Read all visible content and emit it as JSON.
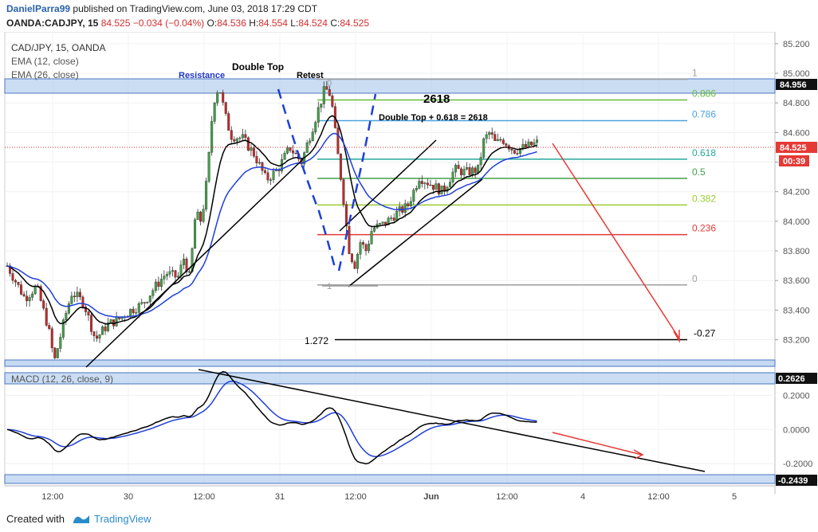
{
  "header": {
    "author": "DanielParra99",
    "published_text": "published on TradingView.com, June 03, 2018 17:29 CDT",
    "symbol": "OANDA:CADJPY, 15",
    "last": "84.525",
    "change": "−0.034 (−0.04%)",
    "o_label": "O:",
    "o_value": "84.536",
    "h_label": "H:",
    "h_value": "84.554",
    "l_label": "L:",
    "l_value": "84.524",
    "c_label": "C:",
    "c_value": "84.525"
  },
  "legend": {
    "title": "CAD/JPY, 15, OANDA",
    "ema12": "EMA (12, close)",
    "ema26": "EMA (26, close)",
    "macd": "MACD (12, 26, close, 9)"
  },
  "annotations": {
    "resistance": "Resistance",
    "double_top": "Double Top",
    "retest": "Retest",
    "target_big": "2618",
    "target_formula": "Double Top + 0.618 = 2618",
    "fib_zero_marker": "0",
    "fib_one_marker": "1",
    "fib_ext": "1.272"
  },
  "fib_levels": [
    {
      "label": "1",
      "price": 84.96,
      "color": "#9e9e9e"
    },
    {
      "label": "0.886",
      "price": 84.82,
      "color": "#66bb3b"
    },
    {
      "label": "0.786",
      "price": 84.68,
      "color": "#4aa3df"
    },
    {
      "label": "0.618",
      "price": 84.42,
      "color": "#26a69a"
    },
    {
      "label": "0.5",
      "price": 84.29,
      "color": "#43a047"
    },
    {
      "label": "0.382",
      "price": 84.11,
      "color": "#9ccc33"
    },
    {
      "label": "0.236",
      "price": 83.91,
      "color": "#e53935"
    },
    {
      "label": "0",
      "price": 83.57,
      "color": "#9e9e9e"
    },
    {
      "label": "-0.27",
      "price": 83.2,
      "color": "#000000"
    }
  ],
  "price_axis": {
    "ticks": [
      "85.200",
      "85.000",
      "84.800",
      "84.600",
      "84.400",
      "84.200",
      "84.000",
      "83.800",
      "83.600",
      "83.400",
      "83.200"
    ],
    "resistance_label": "84.956",
    "last_label": "84.525",
    "countdown": "00:39"
  },
  "macd_axis": {
    "ticks": [
      "0.2000",
      "0.0000",
      "-0.2000"
    ],
    "upper_label": "0.2626",
    "lower_label": "-0.2439"
  },
  "time_axis": [
    "12:00",
    "30",
    "12:00",
    "31",
    "12:00",
    "Jun",
    "12:00",
    "4",
    "12:00",
    "5"
  ],
  "footer": {
    "created_with": "Created with",
    "brand": "TradingView"
  },
  "colors": {
    "bull": "#43a047",
    "bear": "#c62828",
    "ema12": "#000000",
    "ema26": "#1e3fd8",
    "zone": "#9ec1ea",
    "zone_border": "#4a76c2",
    "arrow": "#e53935"
  },
  "chart_data": {
    "type": "candlestick",
    "symbol": "CAD/JPY",
    "interval": "15",
    "ylim": [
      83.02,
      85.28
    ],
    "macd_ylim": [
      -0.33,
      0.37
    ],
    "close_path": [
      [
        0,
        83.7
      ],
      [
        3,
        83.48
      ],
      [
        5,
        83.56
      ],
      [
        7,
        83.28
      ],
      [
        8,
        83.05
      ],
      [
        10,
        83.38
      ],
      [
        11,
        83.52
      ],
      [
        13,
        83.45
      ],
      [
        15,
        83.2
      ],
      [
        17,
        83.3
      ],
      [
        19,
        83.34
      ],
      [
        21,
        83.4
      ],
      [
        23,
        83.44
      ],
      [
        25,
        83.55
      ],
      [
        27,
        83.65
      ],
      [
        29,
        83.62
      ],
      [
        30,
        83.75
      ],
      [
        31,
        83.62
      ],
      [
        32,
        84.05
      ],
      [
        33,
        84.0
      ],
      [
        34,
        84.3
      ],
      [
        35,
        84.8
      ],
      [
        36,
        84.92
      ],
      [
        37,
        84.72
      ],
      [
        38,
        84.58
      ],
      [
        40,
        84.56
      ],
      [
        42,
        84.45
      ],
      [
        44,
        84.28
      ],
      [
        46,
        84.35
      ],
      [
        48,
        84.5
      ],
      [
        50,
        84.4
      ],
      [
        52,
        84.65
      ],
      [
        54,
        84.9
      ],
      [
        55,
        84.85
      ],
      [
        56,
        84.5
      ],
      [
        57,
        84.2
      ],
      [
        58,
        83.82
      ],
      [
        59,
        83.7
      ],
      [
        60,
        83.86
      ],
      [
        61,
        83.8
      ],
      [
        62,
        83.95
      ],
      [
        64,
        83.98
      ],
      [
        66,
        84.05
      ],
      [
        68,
        84.1
      ],
      [
        70,
        84.3
      ],
      [
        72,
        84.25
      ],
      [
        74,
        84.2
      ],
      [
        76,
        84.35
      ],
      [
        78,
        84.33
      ],
      [
        80,
        84.35
      ],
      [
        81,
        84.55
      ],
      [
        82,
        84.6
      ],
      [
        83,
        84.52
      ],
      [
        84,
        84.56
      ],
      [
        86,
        84.48
      ],
      [
        88,
        84.5
      ],
      [
        90,
        84.53
      ]
    ]
  }
}
